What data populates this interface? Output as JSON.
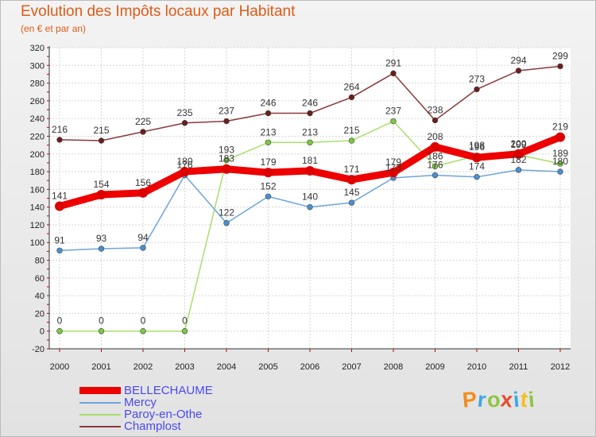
{
  "title": "Evolution des Impôts locaux par Habitant",
  "subtitle": "(en € et par an)",
  "logo_text": "Proxiti",
  "chart_data": {
    "type": "line",
    "title": "Evolution des Impôts locaux par Habitant",
    "subtitle": "(en € et par an)",
    "xlabel": "",
    "ylabel": "",
    "x": [
      "2000",
      "2001",
      "2002",
      "2003",
      "2004",
      "2005",
      "2006",
      "2007",
      "2008",
      "2009",
      "2010",
      "2011",
      "2012"
    ],
    "ylim": [
      -20,
      320
    ],
    "yticks": [
      -20,
      0,
      20,
      40,
      60,
      80,
      100,
      120,
      140,
      160,
      180,
      200,
      220,
      240,
      260,
      280,
      300,
      320
    ],
    "grid": true,
    "legend_position": "bottom-left",
    "series": [
      {
        "name": "BELLECHAUME",
        "color": "#ee0000",
        "point_color": "#dd0000",
        "values": [
          141,
          154,
          156,
          180,
          183,
          179,
          181,
          171,
          179,
          208,
          196,
          200,
          219
        ]
      },
      {
        "name": "Mercy",
        "color": "#6ea5d8",
        "point_color": "#4a8fd0",
        "values": [
          91,
          93,
          94,
          176,
          122,
          152,
          140,
          145,
          173,
          176,
          174,
          182,
          180
        ]
      },
      {
        "name": "Paroy-en-Othe",
        "color": "#a8e06a",
        "point_color": "#7cc842",
        "values": [
          0,
          0,
          0,
          0,
          193,
          213,
          213,
          215,
          237,
          186,
          198,
          199,
          189
        ]
      },
      {
        "name": "Champlost",
        "color": "#8a3a3a",
        "point_color": "#6a1e1e",
        "values": [
          216,
          215,
          225,
          235,
          237,
          246,
          246,
          264,
          291,
          238,
          273,
          294,
          299
        ]
      }
    ]
  }
}
